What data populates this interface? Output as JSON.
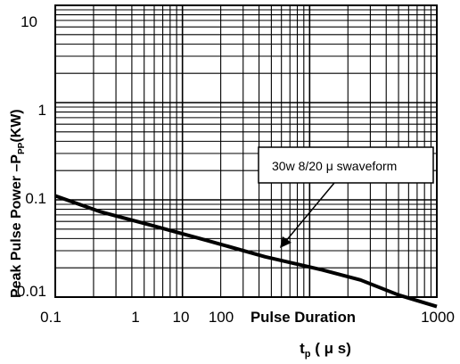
{
  "chart_data": {
    "type": "line",
    "title": "",
    "xlabel": "Pulse Duration",
    "xlabel_unit": "t",
    "xlabel_unit_sub": "p",
    "xlabel_unit_rest": " ( μ s)",
    "ylabel": "Peak Pulse Power –P",
    "ylabel_sub": "PP",
    "ylabel_rest": "(KW)",
    "yscale": "log",
    "ylim": [
      0.01,
      10
    ],
    "grid": true,
    "x_tick_labels": [
      "0.1",
      "1",
      "10",
      "100",
      "1000"
    ],
    "y_tick_labels": [
      "10",
      "1",
      "0.1",
      "0.01"
    ],
    "annotation": "30w 8/20 μ swaveform",
    "series": [
      {
        "x_positions_fraction": [
          0.0,
          0.12,
          0.25,
          0.4,
          0.55,
          0.7,
          0.8,
          0.9,
          1.0
        ],
        "y": [
          0.11,
          0.075,
          0.055,
          0.038,
          0.026,
          0.019,
          0.015,
          0.0105,
          0.008
        ]
      }
    ]
  }
}
